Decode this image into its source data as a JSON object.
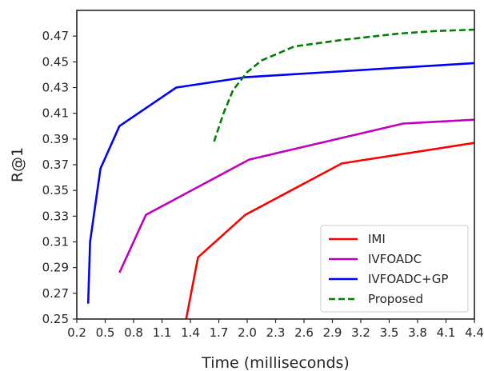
{
  "chart_data": {
    "type": "line",
    "title": "",
    "xlabel": "Time (milliseconds)",
    "ylabel": "R@1",
    "xlim": [
      0.2,
      4.4
    ],
    "ylim": [
      0.25,
      0.49
    ],
    "xticks": [
      "0.2",
      "0.5",
      "0.8",
      "1.1",
      "1.4",
      "1.7",
      "2.0",
      "2.3",
      "2.6",
      "2.9",
      "3.2",
      "3.5",
      "3.8",
      "4.1",
      "4.4"
    ],
    "yticks": [
      "0.25",
      "0.27",
      "0.29",
      "0.31",
      "0.33",
      "0.35",
      "0.37",
      "0.39",
      "0.41",
      "0.43",
      "0.45",
      "0.47"
    ],
    "grid": false,
    "legend_position": "lower-right",
    "series": [
      {
        "name": "IMI",
        "color": "#ff0000",
        "style": "solid",
        "x": [
          1.35,
          1.48,
          1.98,
          3.0,
          4.4
        ],
        "y": [
          0.248,
          0.298,
          0.331,
          0.371,
          0.387
        ]
      },
      {
        "name": "IVFOADC",
        "color": "#bf00bf",
        "style": "solid",
        "x": [
          0.65,
          0.93,
          2.02,
          3.65,
          4.4
        ],
        "y": [
          0.286,
          0.331,
          0.374,
          0.402,
          0.405
        ]
      },
      {
        "name": "IVFOADC+GP",
        "color": "#0000ff",
        "style": "solid",
        "x": [
          0.32,
          0.34,
          0.45,
          0.65,
          1.25,
          1.98,
          4.4
        ],
        "y": [
          0.262,
          0.31,
          0.367,
          0.4,
          0.43,
          0.438,
          0.449
        ]
      },
      {
        "name": "Proposed",
        "color": "#008000",
        "style": "dashed",
        "x": [
          1.65,
          1.75,
          1.85,
          2.0,
          2.15,
          2.5,
          3.0,
          3.6,
          4.0,
          4.4
        ],
        "y": [
          0.388,
          0.41,
          0.428,
          0.442,
          0.451,
          0.462,
          0.467,
          0.472,
          0.474,
          0.475
        ]
      }
    ]
  }
}
